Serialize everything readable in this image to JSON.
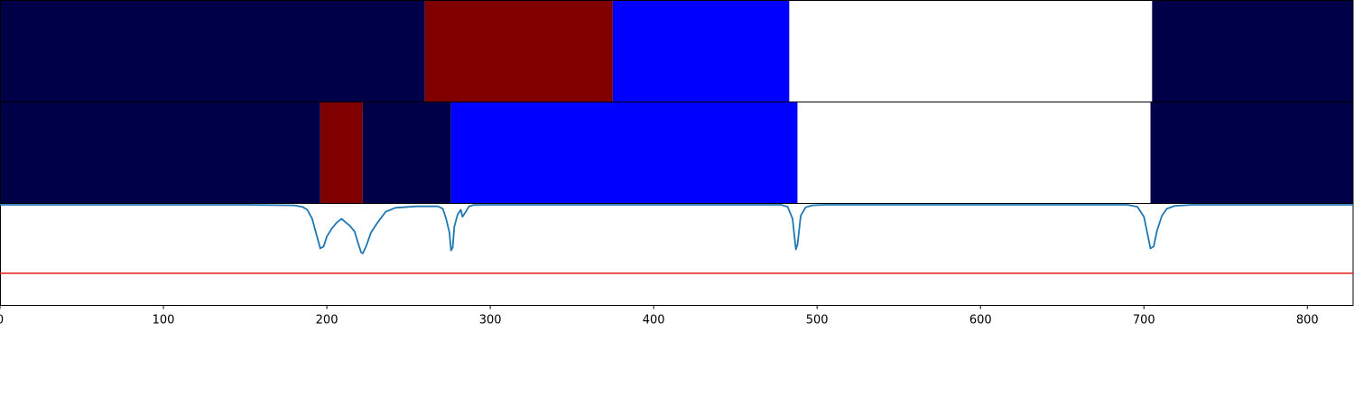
{
  "chart_data": {
    "type": "segmentation-timeline",
    "xlim": [
      0,
      828
    ],
    "xticks": [
      0,
      100,
      200,
      300,
      400,
      500,
      600,
      700,
      800
    ],
    "tick_labels": [
      "0",
      "100",
      "200",
      "300",
      "400",
      "500",
      "600",
      "700",
      "800"
    ],
    "colors": {
      "navy": "#000048",
      "maroon": "#800000",
      "blue": "#0000ff",
      "white": "#ffffff",
      "signal": "#1f77b4",
      "threshold": "#e31a1c"
    },
    "rows": [
      {
        "segments": [
          {
            "start": 0,
            "end": 260,
            "color": "navy"
          },
          {
            "start": 260,
            "end": 375,
            "color": "maroon"
          },
          {
            "start": 375,
            "end": 483,
            "color": "blue"
          },
          {
            "start": 483,
            "end": 705,
            "color": "white"
          },
          {
            "start": 705,
            "end": 828,
            "color": "navy"
          }
        ]
      },
      {
        "segments": [
          {
            "start": 0,
            "end": 196,
            "color": "navy"
          },
          {
            "start": 196,
            "end": 222,
            "color": "maroon"
          },
          {
            "start": 222,
            "end": 276,
            "color": "navy"
          },
          {
            "start": 276,
            "end": 488,
            "color": "blue"
          },
          {
            "start": 488,
            "end": 704,
            "color": "white"
          },
          {
            "start": 704,
            "end": 828,
            "color": "navy"
          }
        ]
      }
    ],
    "signal": {
      "ylim": [
        0,
        1
      ],
      "baseline": 1.0,
      "threshold": 0.31,
      "points": [
        [
          0,
          1.0
        ],
        [
          150,
          1.0
        ],
        [
          180,
          0.995
        ],
        [
          185,
          0.98
        ],
        [
          188,
          0.95
        ],
        [
          191,
          0.86
        ],
        [
          194,
          0.68
        ],
        [
          196,
          0.56
        ],
        [
          198,
          0.58
        ],
        [
          200,
          0.68
        ],
        [
          203,
          0.76
        ],
        [
          206,
          0.82
        ],
        [
          209,
          0.86
        ],
        [
          211,
          0.83
        ],
        [
          214,
          0.79
        ],
        [
          217,
          0.73
        ],
        [
          219,
          0.62
        ],
        [
          221,
          0.52
        ],
        [
          222,
          0.51
        ],
        [
          224,
          0.58
        ],
        [
          227,
          0.72
        ],
        [
          231,
          0.82
        ],
        [
          236,
          0.93
        ],
        [
          242,
          0.97
        ],
        [
          255,
          0.985
        ],
        [
          268,
          0.985
        ],
        [
          271,
          0.96
        ],
        [
          273,
          0.86
        ],
        [
          275,
          0.72
        ],
        [
          276,
          0.54
        ],
        [
          277,
          0.57
        ],
        [
          278,
          0.78
        ],
        [
          280,
          0.9
        ],
        [
          282,
          0.95
        ],
        [
          283,
          0.88
        ],
        [
          285,
          0.93
        ],
        [
          287,
          0.985
        ],
        [
          290,
          0.999
        ],
        [
          300,
          1.0
        ],
        [
          478,
          1.0
        ],
        [
          482,
          0.98
        ],
        [
          485,
          0.86
        ],
        [
          487,
          0.55
        ],
        [
          488,
          0.6
        ],
        [
          490,
          0.89
        ],
        [
          493,
          0.975
        ],
        [
          497,
          0.995
        ],
        [
          505,
          1.0
        ],
        [
          690,
          1.0
        ],
        [
          696,
          0.98
        ],
        [
          700,
          0.88
        ],
        [
          702,
          0.72
        ],
        [
          704,
          0.56
        ],
        [
          706,
          0.58
        ],
        [
          708,
          0.74
        ],
        [
          711,
          0.89
        ],
        [
          714,
          0.96
        ],
        [
          719,
          0.99
        ],
        [
          730,
          1.0
        ],
        [
          828,
          1.0
        ]
      ]
    }
  }
}
